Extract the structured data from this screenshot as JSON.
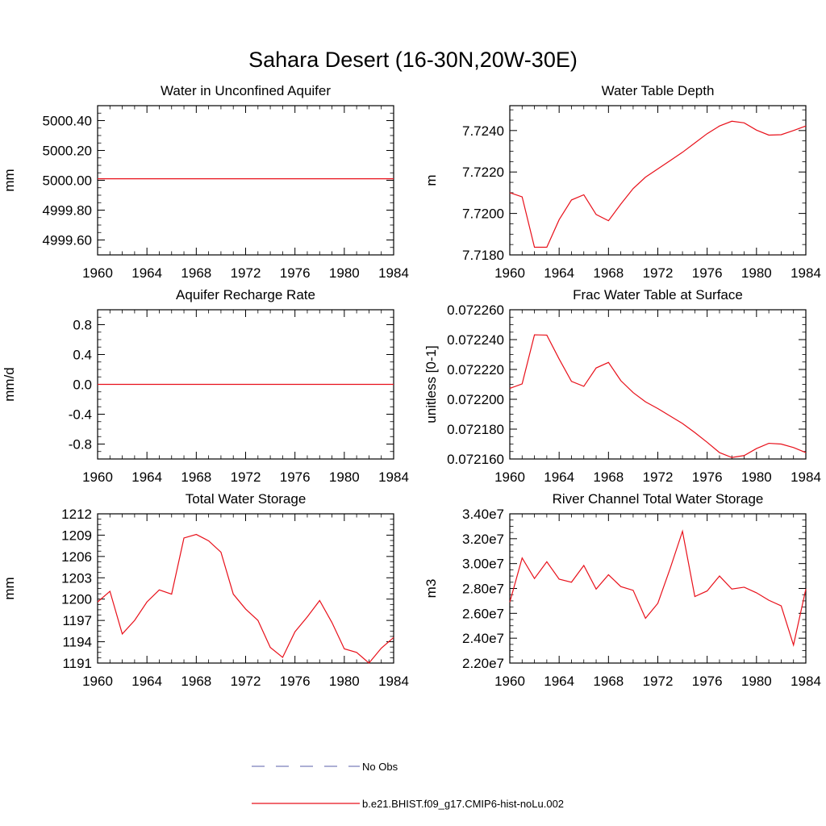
{
  "figure": {
    "title": "Sahara Desert (16-30N,20W-30E)"
  },
  "legend": [
    {
      "label": "No Obs",
      "style": "dashed",
      "color": "#5a5fa8"
    },
    {
      "label": "b.e21.BHIST.f09_g17.CMIP6-hist-noLu.002",
      "style": "solid",
      "color": "#e8101a"
    }
  ],
  "chart_data": [
    {
      "type": "line",
      "title": "Water in Unconfined Aquifer",
      "ylabel": "mm",
      "xlim": [
        1960,
        1984
      ],
      "ylim": [
        4999.5,
        5000.5
      ],
      "x_ticks": [
        1960,
        1964,
        1968,
        1972,
        1976,
        1980,
        1984
      ],
      "x_tick_labels": [
        "1960",
        "1964",
        "1968",
        "1972",
        "1976",
        "1980",
        "1984"
      ],
      "y_ticks": [
        4999.6,
        4999.8,
        5000.0,
        5000.2,
        5000.4
      ],
      "y_tick_labels": [
        "4999.60",
        "4999.80",
        "5000.00",
        "5000.20",
        "5000.40"
      ],
      "x": [
        1960,
        1961,
        1962,
        1963,
        1964,
        1965,
        1966,
        1967,
        1968,
        1969,
        1970,
        1971,
        1972,
        1973,
        1974,
        1975,
        1976,
        1977,
        1978,
        1979,
        1980,
        1981,
        1982,
        1983,
        1984
      ],
      "series": [
        {
          "values": [
            5000.01,
            5000.01,
            5000.01,
            5000.01,
            5000.01,
            5000.01,
            5000.01,
            5000.01,
            5000.01,
            5000.01,
            5000.01,
            5000.01,
            5000.01,
            5000.01,
            5000.01,
            5000.01,
            5000.01,
            5000.01,
            5000.01,
            5000.01,
            5000.01,
            5000.01,
            5000.01,
            5000.01,
            5000.01
          ]
        }
      ]
    },
    {
      "type": "line",
      "title": "Water Table Depth",
      "ylabel": "m",
      "xlim": [
        1960,
        1984
      ],
      "ylim": [
        7.718,
        7.7252
      ],
      "x_ticks": [
        1960,
        1964,
        1968,
        1972,
        1976,
        1980,
        1984
      ],
      "x_tick_labels": [
        "1960",
        "1964",
        "1968",
        "1972",
        "1976",
        "1980",
        "1984"
      ],
      "y_ticks": [
        7.718,
        7.72,
        7.722,
        7.724
      ],
      "y_tick_labels": [
        "7.7180",
        "7.7200",
        "7.7220",
        "7.7240"
      ],
      "x": [
        1960,
        1961,
        1962,
        1963,
        1964,
        1965,
        1966,
        1967,
        1968,
        1969,
        1970,
        1971,
        1972,
        1973,
        1974,
        1975,
        1976,
        1977,
        1978,
        1979,
        1980,
        1981,
        1982,
        1983,
        1984
      ],
      "series": [
        {
          "values": [
            7.721,
            7.7208,
            7.71837,
            7.71837,
            7.7197,
            7.72065,
            7.7209,
            7.71995,
            7.71965,
            7.72045,
            7.7212,
            7.72175,
            7.72215,
            7.72255,
            7.72295,
            7.7234,
            7.72385,
            7.72422,
            7.72445,
            7.72437,
            7.72402,
            7.72378,
            7.7238,
            7.724,
            7.72422
          ]
        }
      ]
    },
    {
      "type": "line",
      "title": "Aquifer Recharge Rate",
      "ylabel": "mm/d",
      "xlim": [
        1960,
        1984
      ],
      "ylim": [
        -1.0,
        1.0
      ],
      "x_ticks": [
        1960,
        1964,
        1968,
        1972,
        1976,
        1980,
        1984
      ],
      "x_tick_labels": [
        "1960",
        "1964",
        "1968",
        "1972",
        "1976",
        "1980",
        "1984"
      ],
      "y_ticks": [
        -0.8,
        -0.4,
        0.0,
        0.4,
        0.8
      ],
      "y_tick_labels": [
        "-0.8",
        "-0.4",
        "0.0",
        "0.4",
        "0.8"
      ],
      "x": [
        1960,
        1961,
        1962,
        1963,
        1964,
        1965,
        1966,
        1967,
        1968,
        1969,
        1970,
        1971,
        1972,
        1973,
        1974,
        1975,
        1976,
        1977,
        1978,
        1979,
        1980,
        1981,
        1982,
        1983,
        1984
      ],
      "series": [
        {
          "values": [
            0,
            0,
            0,
            0,
            0,
            0,
            0,
            0,
            0,
            0,
            0,
            0,
            0,
            0,
            0,
            0,
            0,
            0,
            0,
            0,
            0,
            0,
            0,
            0,
            0
          ]
        }
      ]
    },
    {
      "type": "line",
      "title": "Frac Water Table at Surface",
      "ylabel": "unitless [0-1]",
      "xlim": [
        1960,
        1984
      ],
      "ylim": [
        0.07216,
        0.07226
      ],
      "x_ticks": [
        1960,
        1964,
        1968,
        1972,
        1976,
        1980,
        1984
      ],
      "x_tick_labels": [
        "1960",
        "1964",
        "1968",
        "1972",
        "1976",
        "1980",
        "1984"
      ],
      "y_ticks": [
        0.07216,
        0.07218,
        0.0722,
        0.07222,
        0.07224,
        0.07226
      ],
      "y_tick_labels": [
        "0.072160",
        "0.072180",
        "0.072200",
        "0.072220",
        "0.072240",
        "0.072260"
      ],
      "x": [
        1960,
        1961,
        1962,
        1963,
        1964,
        1965,
        1966,
        1967,
        1968,
        1969,
        1970,
        1971,
        1972,
        1973,
        1974,
        1975,
        1976,
        1977,
        1978,
        1979,
        1980,
        1981,
        1982,
        1983,
        1984
      ],
      "series": [
        {
          "values": [
            0.0722073,
            0.0722103,
            0.0722432,
            0.072243,
            0.072227,
            0.072212,
            0.0722087,
            0.072221,
            0.0722247,
            0.0722125,
            0.0722045,
            0.0721983,
            0.0721938,
            0.0721888,
            0.0721838,
            0.0721777,
            0.0721712,
            0.0721643,
            0.072161,
            0.0721623,
            0.072167,
            0.0721705,
            0.07217,
            0.0721677,
            0.0721643
          ]
        }
      ]
    },
    {
      "type": "line",
      "title": "Total Water Storage",
      "ylabel": "mm",
      "xlim": [
        1960,
        1984
      ],
      "ylim": [
        1191,
        1212
      ],
      "x_ticks": [
        1960,
        1964,
        1968,
        1972,
        1976,
        1980,
        1984
      ],
      "x_tick_labels": [
        "1960",
        "1964",
        "1968",
        "1972",
        "1976",
        "1980",
        "1984"
      ],
      "y_ticks": [
        1191,
        1194,
        1197,
        1200,
        1203,
        1206,
        1209,
        1212
      ],
      "y_tick_labels": [
        "1191",
        "1194",
        "1197",
        "1200",
        "1203",
        "1206",
        "1209",
        "1212"
      ],
      "x": [
        1960,
        1961,
        1962,
        1963,
        1964,
        1965,
        1966,
        1967,
        1968,
        1969,
        1970,
        1971,
        1972,
        1973,
        1974,
        1975,
        1976,
        1977,
        1978,
        1979,
        1980,
        1981,
        1982,
        1983,
        1984
      ],
      "series": [
        {
          "values": [
            1199.6,
            1201.1,
            1195.1,
            1197.0,
            1199.6,
            1201.3,
            1200.7,
            1208.6,
            1209.1,
            1208.2,
            1206.6,
            1200.7,
            1198.6,
            1197.0,
            1193.2,
            1191.8,
            1195.4,
            1197.5,
            1199.8,
            1196.7,
            1193.0,
            1192.5,
            1191.0,
            1193.1,
            1194.6
          ]
        }
      ]
    },
    {
      "type": "line",
      "title": "River Channel Total Water Storage",
      "ylabel": "m3",
      "xlim": [
        1960,
        1984
      ],
      "ylim": [
        22000000,
        34000000
      ],
      "x_ticks": [
        1960,
        1964,
        1968,
        1972,
        1976,
        1980,
        1984
      ],
      "x_tick_labels": [
        "1960",
        "1964",
        "1968",
        "1972",
        "1976",
        "1980",
        "1984"
      ],
      "y_ticks": [
        22000000,
        24000000,
        26000000,
        28000000,
        30000000,
        32000000,
        34000000
      ],
      "y_tick_labels": [
        "2.20e7",
        "2.40e7",
        "2.60e7",
        "2.80e7",
        "3.00e7",
        "3.20e7",
        "3.40e7"
      ],
      "x": [
        1960,
        1961,
        1962,
        1963,
        1964,
        1965,
        1966,
        1967,
        1968,
        1969,
        1970,
        1971,
        1972,
        1973,
        1974,
        1975,
        1976,
        1977,
        1978,
        1979,
        1980,
        1981,
        1982,
        1983,
        1984
      ],
      "series": [
        {
          "values": [
            26900000,
            30450000,
            28800000,
            30150000,
            28750000,
            28500000,
            29850000,
            27950000,
            29100000,
            28150000,
            27850000,
            25600000,
            26800000,
            29600000,
            32600000,
            27350000,
            27800000,
            29000000,
            27950000,
            28100000,
            27650000,
            27050000,
            26600000,
            23450000,
            27950000
          ]
        }
      ]
    }
  ]
}
